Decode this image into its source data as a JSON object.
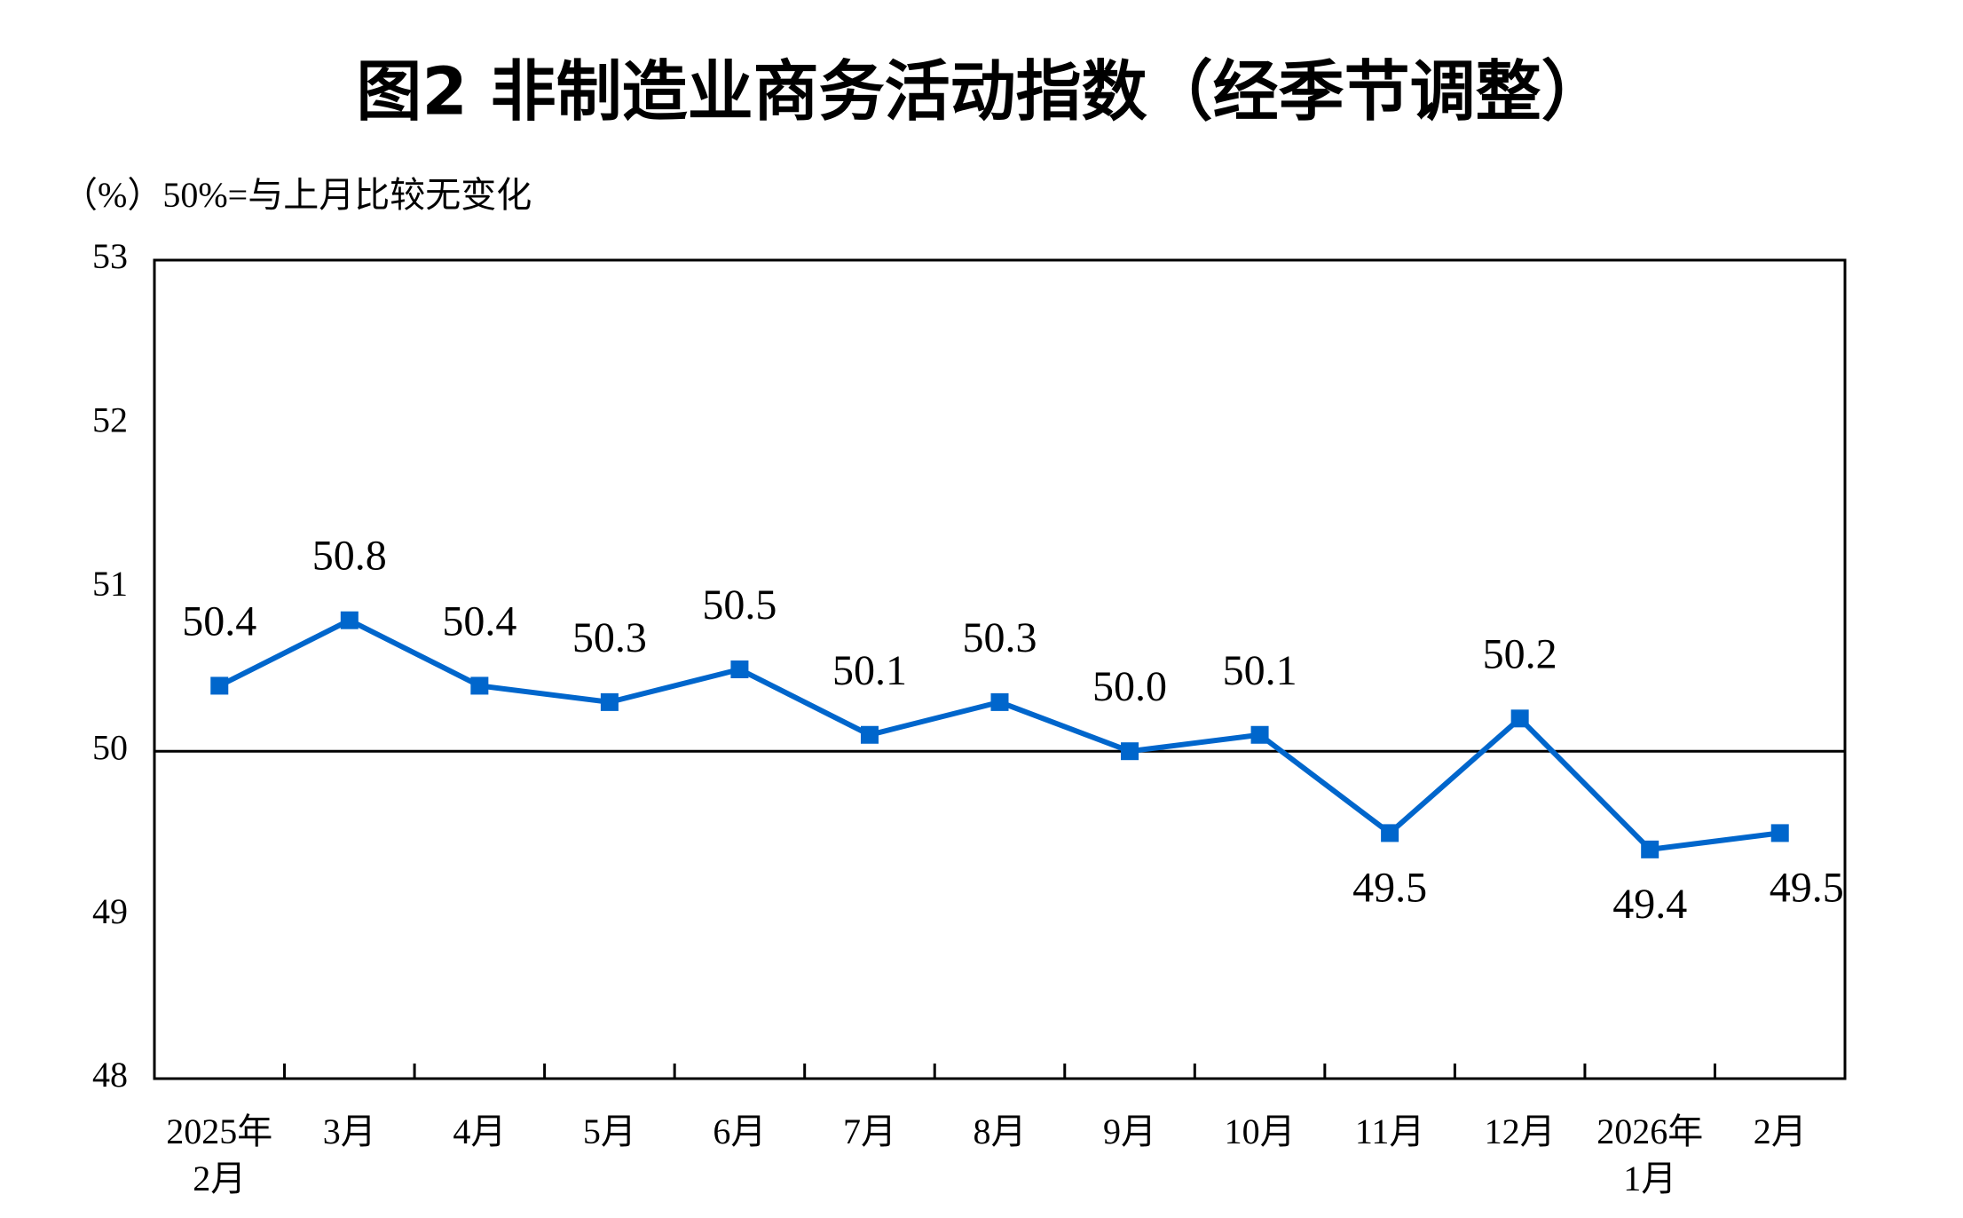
{
  "chart_data": {
    "type": "line",
    "title": "图2  非制造业商务活动指数（经季节调整）",
    "subtitle": "（%）50%=与上月比较无变化",
    "categories": [
      [
        "2025年",
        "2月"
      ],
      "3月",
      "4月",
      "5月",
      "6月",
      "7月",
      "8月",
      "9月",
      "10月",
      "11月",
      "12月",
      [
        "2026年",
        "1月"
      ],
      "2月"
    ],
    "values": [
      50.4,
      50.8,
      50.4,
      50.3,
      50.5,
      50.1,
      50.3,
      50.0,
      50.1,
      49.5,
      50.2,
      49.4,
      49.5
    ],
    "value_labels": [
      "50.4",
      "50.8",
      "50.4",
      "50.3",
      "50.5",
      "50.1",
      "50.3",
      "50.0",
      "50.1",
      "49.5",
      "50.2",
      "49.4",
      "49.5"
    ],
    "color": "#0066cc",
    "ylim": [
      48,
      53
    ],
    "yticks": [
      48,
      49,
      50,
      51,
      52,
      53
    ],
    "baseline": 50,
    "grid": false
  }
}
